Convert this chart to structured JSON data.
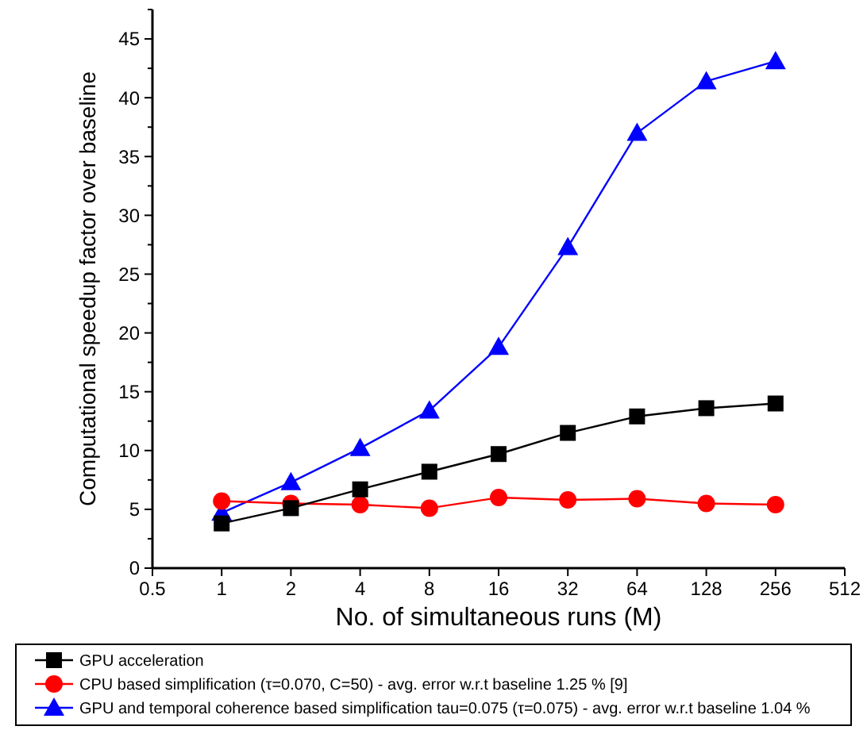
{
  "chart_data": {
    "type": "line",
    "xlabel": "No. of simultaneous runs (M)",
    "ylabel": "Computational speedup factor over baseline",
    "log": "x",
    "x": [
      1,
      2,
      4,
      8,
      16,
      32,
      64,
      128,
      256
    ],
    "xlim": [
      0.5,
      512
    ],
    "xticks": [
      0.5,
      1,
      2,
      4,
      8,
      16,
      32,
      64,
      128,
      256,
      512
    ],
    "ylim": [
      0,
      47.5
    ],
    "yticks": [
      0,
      {
        "value": 2.5,
        "label": null
      },
      5,
      {
        "value": 7.5,
        "label": null
      },
      10,
      {
        "value": 12.5,
        "label": null
      },
      15,
      {
        "value": 17.5,
        "label": null
      },
      20,
      {
        "value": 22.5,
        "label": null
      },
      25,
      {
        "value": 27.5,
        "label": null
      },
      30,
      {
        "value": 32.5,
        "label": null
      },
      35,
      {
        "value": 37.5,
        "label": null
      },
      40,
      {
        "value": 42.5,
        "label": null
      },
      45,
      {
        "value": 47.5,
        "label": null
      }
    ],
    "grid": false,
    "legend": "bottom",
    "line_style": "solid",
    "series": [
      {
        "name": "GPU acceleration",
        "color": "#000000",
        "marker": "square",
        "values": [
          3.8,
          5.1,
          6.7,
          8.2,
          9.7,
          11.5,
          12.9,
          13.6,
          14.0
        ]
      },
      {
        "name": "CPU based simplification (τ=0.070, C=50) - avg. error w.r.t baseline 1.25 % [9]",
        "color": "#ff0000",
        "marker": "circle",
        "values": [
          5.7,
          5.5,
          5.4,
          5.1,
          6.0,
          5.8,
          5.9,
          5.5,
          5.4
        ]
      },
      {
        "name": "GPU and temporal coherence based simplification tau=0.075 (τ=0.075) - avg. error w.r.t baseline 1.04 %",
        "color": "#0000ff",
        "marker": "triangle",
        "values": [
          4.7,
          7.3,
          10.2,
          13.4,
          18.8,
          27.3,
          37.0,
          41.4,
          43.1
        ]
      }
    ]
  }
}
